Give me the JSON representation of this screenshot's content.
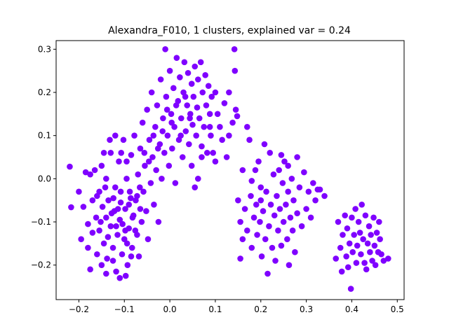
{
  "chart_data": {
    "type": "scatter",
    "title": "Alexandra_F010, 1 clusters, explained var = 0.24",
    "xlabel": "",
    "ylabel": "",
    "xlim": [
      -0.25,
      0.515
    ],
    "ylim": [
      -0.28,
      0.32
    ],
    "xticks": [
      -0.2,
      -0.1,
      0.0,
      0.1,
      0.2,
      0.3,
      0.4,
      0.5
    ],
    "xtick_labels": [
      "−0.2",
      "−0.1",
      "0.0",
      "0.1",
      "0.2",
      "0.3",
      "0.4",
      "0.5"
    ],
    "yticks": [
      -0.2,
      -0.1,
      0.0,
      0.1,
      0.2,
      0.3
    ],
    "ytick_labels": [
      "−0.2",
      "−0.1",
      "0.0",
      "0.1",
      "0.2",
      "0.3"
    ],
    "grid": false,
    "marker_color": "#7f00ff",
    "series": [
      {
        "points": [
          [
            -0.22,
            0.028
          ],
          [
            -0.217,
            -0.066
          ],
          [
            -0.2,
            -0.03
          ],
          [
            -0.195,
            -0.14
          ],
          [
            -0.19,
            -0.065
          ],
          [
            -0.185,
            0.015
          ],
          [
            -0.18,
            -0.105
          ],
          [
            -0.18,
            -0.16
          ],
          [
            -0.175,
            -0.21
          ],
          [
            -0.175,
            0.01
          ],
          [
            -0.17,
            -0.05
          ],
          [
            -0.17,
            -0.125
          ],
          [
            -0.165,
            0.02
          ],
          [
            -0.162,
            -0.09
          ],
          [
            -0.16,
            -0.175
          ],
          [
            -0.155,
            -0.03
          ],
          [
            -0.155,
            -0.12
          ],
          [
            -0.15,
            0.03
          ],
          [
            -0.15,
            -0.2
          ],
          [
            -0.148,
            -0.065
          ],
          [
            -0.145,
            -0.15
          ],
          [
            -0.14,
            -0.09
          ],
          [
            -0.14,
            0.0
          ],
          [
            -0.138,
            -0.185
          ],
          [
            -0.135,
            -0.05
          ],
          [
            -0.13,
            -0.11
          ],
          [
            -0.13,
            0.06
          ],
          [
            -0.125,
            -0.16
          ],
          [
            -0.122,
            -0.075
          ],
          [
            -0.12,
            -0.02
          ],
          [
            -0.118,
            -0.215
          ],
          [
            -0.115,
            -0.13
          ],
          [
            -0.112,
            0.04
          ],
          [
            -0.11,
            -0.095
          ],
          [
            -0.108,
            -0.055
          ],
          [
            -0.105,
            -0.175
          ],
          [
            -0.102,
            0.09
          ],
          [
            -0.1,
            -0.14
          ],
          [
            -0.098,
            -0.07
          ],
          [
            -0.095,
            0.0
          ],
          [
            -0.093,
            -0.2
          ],
          [
            -0.09,
            -0.115
          ],
          [
            -0.088,
            -0.03
          ],
          [
            -0.085,
            0.055
          ],
          [
            -0.083,
            -0.16
          ],
          [
            -0.08,
            -0.085
          ],
          [
            -0.078,
            0.1
          ],
          [
            -0.075,
            -0.05
          ],
          [
            -0.072,
            -0.13
          ],
          [
            -0.07,
            0.01
          ],
          [
            -0.068,
            -0.18
          ],
          [
            -0.065,
            0.07
          ],
          [
            -0.062,
            -0.1
          ],
          [
            -0.06,
            0.13
          ],
          [
            -0.058,
            -0.03
          ],
          [
            -0.055,
            0.03
          ],
          [
            -0.052,
            -0.075
          ],
          [
            -0.05,
            0.16
          ],
          [
            -0.048,
            -0.14
          ],
          [
            -0.045,
            0.09
          ],
          [
            -0.042,
            -0.01
          ],
          [
            -0.04,
            0.2
          ],
          [
            -0.038,
            0.05
          ],
          [
            -0.035,
            -0.06
          ],
          [
            -0.032,
            0.12
          ],
          [
            -0.03,
            0.02
          ],
          [
            -0.028,
            0.17
          ],
          [
            -0.025,
            -0.1
          ],
          [
            -0.022,
            0.08
          ],
          [
            -0.02,
            0.23
          ],
          [
            -0.018,
            0.0
          ],
          [
            -0.015,
            0.14
          ],
          [
            -0.012,
            0.06
          ],
          [
            -0.01,
            0.3
          ],
          [
            -0.008,
            0.19
          ],
          [
            -0.005,
            0.1
          ],
          [
            -0.002,
            0.03
          ],
          [
            0.0,
            0.25
          ],
          [
            0.003,
            0.15
          ],
          [
            0.005,
            0.07
          ],
          [
            0.008,
            0.21
          ],
          [
            0.01,
            0.12
          ],
          [
            0.012,
            -0.01
          ],
          [
            0.015,
            0.28
          ],
          [
            0.018,
            0.18
          ],
          [
            0.02,
            0.09
          ],
          [
            0.022,
            0.235
          ],
          [
            0.025,
            0.14
          ],
          [
            0.028,
            0.05
          ],
          [
            0.03,
            0.2
          ],
          [
            0.032,
            0.27
          ],
          [
            0.035,
            0.11
          ],
          [
            0.038,
            0.17
          ],
          [
            0.04,
            0.245
          ],
          [
            0.042,
            0.08
          ],
          [
            0.045,
            0.15
          ],
          [
            0.048,
            0.22
          ],
          [
            0.05,
            0.125
          ],
          [
            0.052,
            0.19
          ],
          [
            0.055,
            0.26
          ],
          [
            0.058,
            0.1
          ],
          [
            0.06,
            0.165
          ],
          [
            0.062,
            0.23
          ],
          [
            0.065,
            0.14
          ],
          [
            0.068,
            0.27
          ],
          [
            0.07,
            0.075
          ],
          [
            0.072,
            0.2
          ],
          [
            0.075,
            0.12
          ],
          [
            0.078,
            0.24
          ],
          [
            0.08,
            0.17
          ],
          [
            0.082,
            0.06
          ],
          [
            0.085,
            0.215
          ],
          [
            0.088,
            0.15
          ],
          [
            0.09,
            0.1
          ],
          [
            0.092,
            0.19
          ],
          [
            -0.16,
            -0.04
          ],
          [
            -0.142,
            -0.02
          ],
          [
            -0.128,
            -0.08
          ],
          [
            -0.118,
            -0.11
          ],
          [
            -0.108,
            -0.03
          ],
          [
            -0.098,
            -0.12
          ],
          [
            -0.09,
            -0.06
          ],
          [
            -0.082,
            -0.09
          ],
          [
            -0.072,
            -0.04
          ],
          [
            -0.065,
            -0.07
          ],
          [
            -0.152,
            -0.1
          ],
          [
            -0.136,
            -0.135
          ],
          [
            -0.124,
            -0.045
          ],
          [
            -0.114,
            -0.07
          ],
          [
            -0.104,
            -0.105
          ],
          [
            -0.094,
            -0.15
          ],
          [
            -0.086,
            -0.045
          ],
          [
            -0.076,
            -0.12
          ],
          [
            -0.066,
            -0.02
          ],
          [
            -0.056,
            0.06
          ],
          [
            -0.046,
            0.04
          ],
          [
            -0.036,
            0.1
          ],
          [
            -0.026,
            0.07
          ],
          [
            -0.016,
            0.11
          ],
          [
            -0.006,
            0.16
          ],
          [
            0.004,
            0.13
          ],
          [
            0.014,
            0.17
          ],
          [
            0.024,
            0.1
          ],
          [
            0.034,
            0.19
          ],
          [
            0.044,
            0.14
          ],
          [
            -0.145,
            0.06
          ],
          [
            -0.132,
            0.09
          ],
          [
            -0.12,
            0.1
          ],
          [
            -0.107,
            0.06
          ],
          [
            -0.095,
            0.04
          ],
          [
            -0.14,
            -0.22
          ],
          [
            -0.125,
            -0.19
          ],
          [
            -0.11,
            -0.23
          ],
          [
            -0.097,
            -0.225
          ],
          [
            -0.085,
            -0.18
          ],
          [
            0.1,
            0.2
          ],
          [
            0.105,
            0.15
          ],
          [
            0.11,
            0.12
          ],
          [
            0.115,
            0.09
          ],
          [
            0.12,
            0.175
          ],
          [
            0.13,
            0.2
          ],
          [
            0.138,
            0.13
          ],
          [
            0.142,
            0.3
          ],
          [
            0.143,
            0.25
          ],
          [
            0.145,
            0.16
          ],
          [
            0.148,
            0.145
          ],
          [
            0.13,
            0.1
          ],
          [
            0.125,
            0.05
          ],
          [
            0.095,
            0.06
          ],
          [
            0.1,
            0.04
          ],
          [
            0.088,
            0.12
          ],
          [
            0.07,
            0.05
          ],
          [
            0.062,
            0.0
          ],
          [
            0.055,
            -0.02
          ],
          [
            0.048,
            0.03
          ],
          [
            0.15,
            -0.05
          ],
          [
            0.155,
            -0.1
          ],
          [
            0.155,
            -0.185
          ],
          [
            0.16,
            -0.14
          ],
          [
            0.165,
            -0.07
          ],
          [
            0.17,
            -0.12
          ],
          [
            0.175,
            0.09
          ],
          [
            0.178,
            -0.04
          ],
          [
            0.18,
            -0.16
          ],
          [
            0.185,
            -0.09
          ],
          [
            0.188,
            0.02
          ],
          [
            0.19,
            -0.06
          ],
          [
            0.192,
            -0.13
          ],
          [
            0.195,
            0.04
          ],
          [
            0.198,
            -0.1
          ],
          [
            0.2,
            -0.02
          ],
          [
            0.202,
            -0.18
          ],
          [
            0.205,
            -0.075
          ],
          [
            0.208,
            0.08
          ],
          [
            0.21,
            -0.14
          ],
          [
            0.212,
            -0.03
          ],
          [
            0.215,
            -0.22
          ],
          [
            0.218,
            -0.11
          ],
          [
            0.22,
            0.06
          ],
          [
            0.222,
            -0.06
          ],
          [
            0.225,
            -0.16
          ],
          [
            0.228,
            0.01
          ],
          [
            0.23,
            -0.085
          ],
          [
            0.232,
            -0.19
          ],
          [
            0.235,
            -0.04
          ],
          [
            0.238,
            -0.12
          ],
          [
            0.24,
            0.02
          ],
          [
            0.242,
            -0.07
          ],
          [
            0.245,
            -0.155
          ],
          [
            0.248,
            -0.01
          ],
          [
            0.25,
            -0.1
          ],
          [
            0.252,
            0.04
          ],
          [
            0.255,
            -0.06
          ],
          [
            0.258,
            -0.14
          ],
          [
            0.26,
            -0.03
          ],
          [
            0.262,
            -0.2
          ],
          [
            0.265,
            -0.09
          ],
          [
            0.268,
            0.0
          ],
          [
            0.27,
            -0.12
          ],
          [
            0.272,
            -0.05
          ],
          [
            0.275,
            -0.17
          ],
          [
            0.28,
            -0.08
          ],
          [
            0.285,
            -0.02
          ],
          [
            0.29,
            -0.11
          ],
          [
            0.295,
            0.015
          ],
          [
            0.3,
            -0.07
          ],
          [
            0.305,
            -0.03
          ],
          [
            0.31,
            -0.09
          ],
          [
            0.315,
            -0.01
          ],
          [
            0.32,
            -0.05
          ],
          [
            0.325,
            -0.025
          ],
          [
            0.33,
            -0.025
          ],
          [
            0.34,
            -0.04
          ],
          [
            0.2,
            -0.05
          ],
          [
            0.18,
            -0.005
          ],
          [
            0.17,
            0.12
          ],
          [
            0.16,
            0.02
          ],
          [
            0.245,
            0.055
          ],
          [
            0.26,
            0.03
          ],
          [
            0.28,
            0.05
          ],
          [
            0.365,
            -0.185
          ],
          [
            0.37,
            -0.1
          ],
          [
            0.375,
            -0.16
          ],
          [
            0.378,
            -0.215
          ],
          [
            0.38,
            -0.13
          ],
          [
            0.385,
            -0.085
          ],
          [
            0.388,
            -0.18
          ],
          [
            0.39,
            -0.115
          ],
          [
            0.392,
            -0.205
          ],
          [
            0.395,
            -0.15
          ],
          [
            0.398,
            -0.255
          ],
          [
            0.4,
            -0.09
          ],
          [
            0.402,
            -0.17
          ],
          [
            0.405,
            -0.13
          ],
          [
            0.408,
            -0.07
          ],
          [
            0.41,
            -0.195
          ],
          [
            0.412,
            -0.155
          ],
          [
            0.415,
            -0.1
          ],
          [
            0.418,
            -0.125
          ],
          [
            0.42,
            -0.175
          ],
          [
            0.422,
            -0.06
          ],
          [
            0.425,
            -0.14
          ],
          [
            0.428,
            -0.195
          ],
          [
            0.43,
            -0.085
          ],
          [
            0.432,
            -0.21
          ],
          [
            0.435,
            -0.15
          ],
          [
            0.438,
            -0.11
          ],
          [
            0.44,
            -0.17
          ],
          [
            0.442,
            -0.13
          ],
          [
            0.445,
            -0.19
          ],
          [
            0.448,
            -0.09
          ],
          [
            0.45,
            -0.155
          ],
          [
            0.452,
            -0.2
          ],
          [
            0.455,
            -0.125
          ],
          [
            0.458,
            -0.17
          ],
          [
            0.46,
            -0.1
          ],
          [
            0.462,
            -0.14
          ],
          [
            0.465,
            -0.175
          ],
          [
            0.47,
            -0.19
          ],
          [
            0.48,
            -0.185
          ]
        ]
      }
    ]
  }
}
